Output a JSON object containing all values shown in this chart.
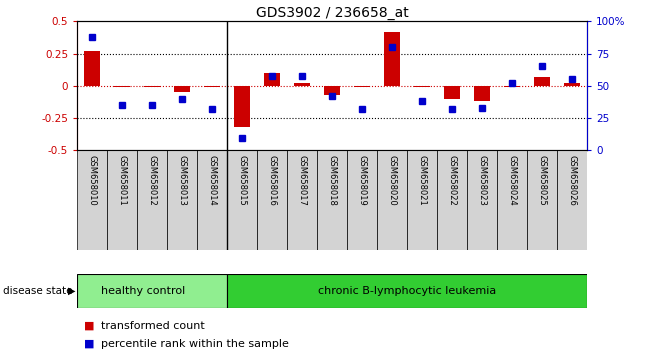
{
  "title": "GDS3902 / 236658_at",
  "samples": [
    "GSM658010",
    "GSM658011",
    "GSM658012",
    "GSM658013",
    "GSM658014",
    "GSM658015",
    "GSM658016",
    "GSM658017",
    "GSM658018",
    "GSM658019",
    "GSM658020",
    "GSM658021",
    "GSM658022",
    "GSM658023",
    "GSM658024",
    "GSM658025",
    "GSM658026"
  ],
  "red_values": [
    0.27,
    -0.01,
    -0.01,
    -0.05,
    -0.01,
    -0.32,
    0.1,
    0.02,
    -0.07,
    -0.01,
    0.42,
    -0.01,
    -0.1,
    -0.12,
    -0.01,
    0.07,
    0.02
  ],
  "blue_values": [
    88,
    35,
    35,
    40,
    32,
    10,
    58,
    58,
    42,
    32,
    80,
    38,
    32,
    33,
    52,
    65,
    55
  ],
  "healthy_count": 5,
  "disease_label": "disease state",
  "group1_label": "healthy control",
  "group2_label": "chronic B-lymphocytic leukemia",
  "legend1": "transformed count",
  "legend2": "percentile rank within the sample",
  "ylim_left": [
    -0.5,
    0.5
  ],
  "ylim_right": [
    0,
    100
  ],
  "yticks_left": [
    -0.5,
    -0.25,
    0.0,
    0.25,
    0.5
  ],
  "yticks_right": [
    0,
    25,
    50,
    75,
    100
  ],
  "red_color": "#CC0000",
  "blue_color": "#0000CC",
  "bar_width": 0.55,
  "marker_size": 5,
  "bg_plot": "#ffffff",
  "bg_labels": "#d3d3d3",
  "bg_healthy": "#90EE90",
  "bg_leukemia": "#32CD32",
  "dotted_color": "#000000"
}
